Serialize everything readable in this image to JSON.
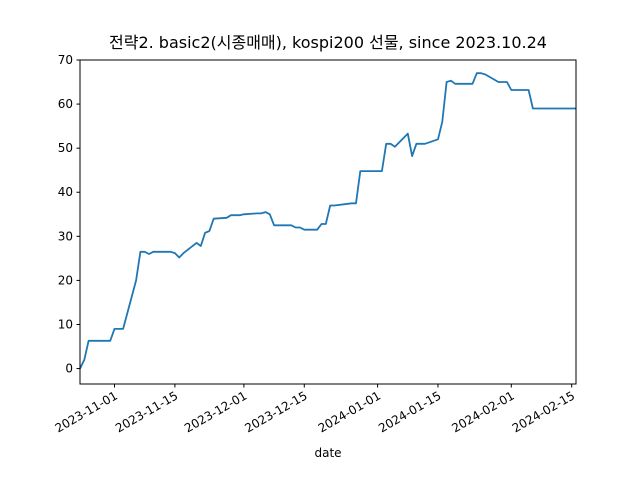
{
  "chart_data": {
    "type": "line",
    "title": "전략2. basic2(시종매매), kospi200 선물, since 2023.10.24",
    "xlabel": "date",
    "ylabel": "",
    "x_range": [
      "2023-10-24",
      "2024-02-16"
    ],
    "ylim": [
      -3.5,
      70
    ],
    "yticks": [
      0,
      10,
      20,
      30,
      40,
      50,
      60,
      70
    ],
    "xticks": [
      "2023-11-01",
      "2023-11-15",
      "2023-12-01",
      "2023-12-15",
      "2024-01-01",
      "2024-01-15",
      "2024-02-01",
      "2024-02-15"
    ],
    "grid": false,
    "legend": "none",
    "line_color": "#1f77b4",
    "series": [
      {
        "x": [
          "2023-10-24",
          "2023-10-25",
          "2023-10-26",
          "2023-10-27",
          "2023-10-30",
          "2023-10-31",
          "2023-11-01",
          "2023-11-02",
          "2023-11-03",
          "2023-11-06",
          "2023-11-07",
          "2023-11-08",
          "2023-11-09",
          "2023-11-10",
          "2023-11-13",
          "2023-11-14",
          "2023-11-15",
          "2023-11-16",
          "2023-11-17",
          "2023-11-20",
          "2023-11-21",
          "2023-11-22",
          "2023-11-23",
          "2023-11-24",
          "2023-11-27",
          "2023-11-28",
          "2023-11-29",
          "2023-11-30",
          "2023-12-01",
          "2023-12-04",
          "2023-12-05",
          "2023-12-06",
          "2023-12-07",
          "2023-12-08",
          "2023-12-11",
          "2023-12-12",
          "2023-12-13",
          "2023-12-14",
          "2023-12-15",
          "2023-12-18",
          "2023-12-19",
          "2023-12-20",
          "2023-12-21",
          "2023-12-22",
          "2023-12-26",
          "2023-12-27",
          "2023-12-28",
          "2024-01-02",
          "2024-01-03",
          "2024-01-04",
          "2024-01-05",
          "2024-01-08",
          "2024-01-09",
          "2024-01-10",
          "2024-01-11",
          "2024-01-12",
          "2024-01-15",
          "2024-01-16",
          "2024-01-17",
          "2024-01-18",
          "2024-01-19",
          "2024-01-22",
          "2024-01-23",
          "2024-01-24",
          "2024-01-25",
          "2024-01-26",
          "2024-01-29",
          "2024-01-30",
          "2024-01-31",
          "2024-02-01",
          "2024-02-02",
          "2024-02-05",
          "2024-02-06",
          "2024-02-07",
          "2024-02-08",
          "2024-02-13",
          "2024-02-14",
          "2024-02-15",
          "2024-02-16"
        ],
        "values": [
          0,
          2,
          6.3,
          6.3,
          6.3,
          6.3,
          9,
          9,
          9,
          20,
          26.5,
          26.5,
          26,
          26.5,
          26.5,
          26.5,
          26.2,
          25.2,
          26.2,
          28.5,
          27.8,
          30.8,
          31.2,
          34,
          34.2,
          34.8,
          34.8,
          34.8,
          35,
          35.2,
          35.2,
          35.5,
          35,
          32.5,
          32.5,
          32.5,
          32,
          32,
          31.5,
          31.5,
          32.8,
          32.8,
          37,
          37,
          37.5,
          37.5,
          44.8,
          44.8,
          51,
          51,
          50.3,
          53.3,
          48.2,
          51,
          51,
          51,
          52,
          56,
          65,
          65.3,
          64.6,
          64.6,
          64.6,
          67,
          67,
          66.7,
          65,
          65,
          65,
          63.2,
          63.2,
          63.2,
          59,
          59,
          59,
          59,
          59,
          59,
          59
        ]
      }
    ]
  }
}
